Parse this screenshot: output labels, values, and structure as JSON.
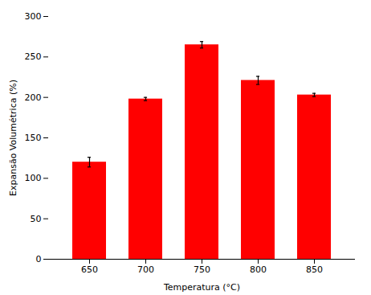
{
  "chart_data": {
    "type": "bar",
    "categories": [
      "650",
      "700",
      "750",
      "800",
      "850"
    ],
    "values": [
      120,
      198,
      265,
      221,
      203
    ],
    "errors": [
      6,
      2,
      4,
      5,
      2
    ],
    "color": "#FF0000",
    "xlabel": "Temperatura (°C)",
    "ylabel": "Expansão Volumétrica (%)",
    "ylim": [
      0,
      300
    ],
    "yticks": [
      0,
      50,
      100,
      150,
      200,
      250,
      300
    ],
    "grid": false
  }
}
